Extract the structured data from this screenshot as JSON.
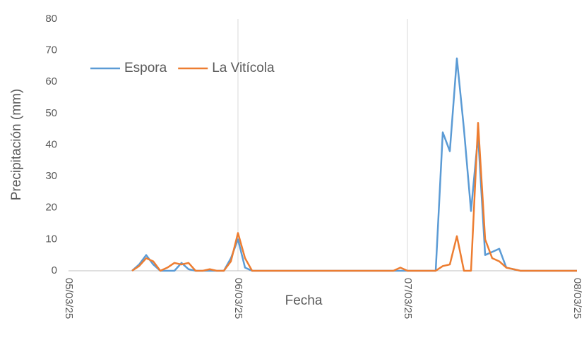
{
  "chart_data": {
    "type": "line",
    "x_label": "Fecha",
    "y_label": "Precipitación (mm)",
    "x": [
      9,
      10,
      11,
      12,
      13,
      14,
      15,
      16,
      17,
      18,
      19,
      20,
      21,
      22,
      23,
      24,
      25,
      26,
      46,
      47,
      48,
      52,
      53,
      54,
      55,
      56,
      57,
      58,
      59,
      60,
      61,
      62,
      63,
      64,
      72
    ],
    "series": [
      {
        "name": "Espora",
        "color": "#5b9bd5",
        "values": [
          0,
          2,
          5,
          2,
          0,
          0,
          0,
          2.5,
          0.5,
          0,
          0,
          0,
          0,
          0,
          4,
          10,
          1,
          0,
          0,
          0,
          0,
          0,
          44,
          38,
          67.5,
          45,
          19,
          43,
          5,
          6,
          7,
          1,
          0.5,
          0,
          0
        ]
      },
      {
        "name": "La Vitícola",
        "color": "#ed7d31",
        "values": [
          0,
          1.5,
          4,
          3,
          0,
          1,
          2.5,
          2,
          2.5,
          0,
          0,
          0.5,
          0,
          0,
          3,
          12,
          4,
          0,
          0,
          1,
          0,
          0,
          1.5,
          2,
          11,
          0,
          0,
          47,
          10,
          4,
          3,
          1,
          0.5,
          0,
          0
        ]
      }
    ],
    "xlim": [
      0,
      72
    ],
    "xticks": [
      {
        "value": 0,
        "label": "05/03/25"
      },
      {
        "value": 24,
        "label": "06/03/25"
      },
      {
        "value": 48,
        "label": "07/03/25"
      },
      {
        "value": 72,
        "label": "08/03/25"
      }
    ],
    "ylim": [
      0,
      80
    ],
    "yticks": [
      0,
      10,
      20,
      30,
      40,
      50,
      60,
      70,
      80
    ],
    "grid": "x",
    "legend": "upper left"
  }
}
